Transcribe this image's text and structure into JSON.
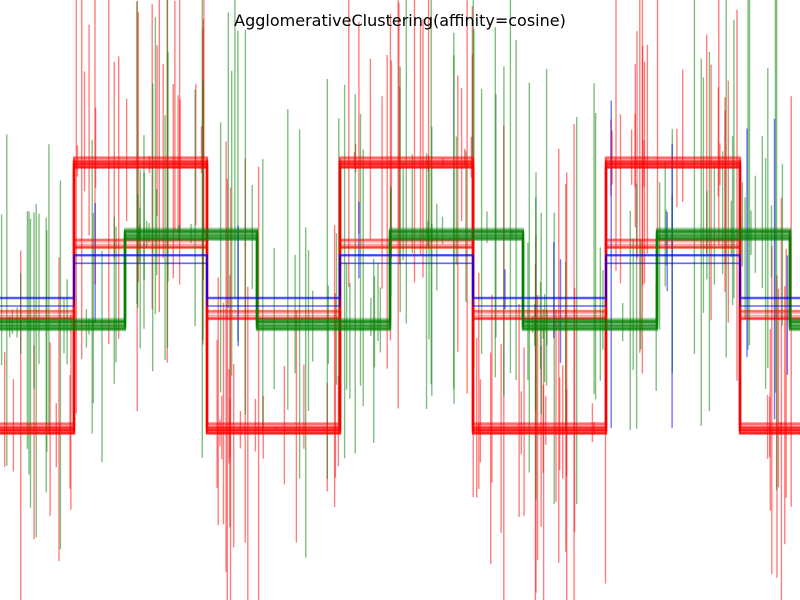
{
  "chart_data": {
    "type": "line",
    "title": "AgglomerativeClustering(affinity=cosine)",
    "xlabel": "",
    "ylabel": "",
    "xlim": [
      0,
      800
    ],
    "ylim": [
      -3,
      3
    ],
    "grid": false,
    "legend": "none",
    "axes_visible": false,
    "x": [
      0,
      74,
      125,
      207,
      257,
      340,
      390,
      473,
      523,
      606,
      657,
      740,
      790,
      800
    ],
    "series": [
      {
        "cluster": 0,
        "color": "#ff0000",
        "levels": [
          -1.2,
          1.6,
          1.6,
          -1.2,
          -1.2,
          1.6,
          1.6,
          -1.2,
          -1.2,
          1.6,
          1.6,
          -1.2,
          -1.2,
          -1.2
        ],
        "alt_levels": [
          0.0,
          0.75,
          0.75,
          0.0,
          0.0,
          0.75,
          0.75,
          0.0,
          0.0,
          0.75,
          0.75,
          0.0,
          0.0,
          0.0
        ],
        "opacity": 0.5
      },
      {
        "cluster": 1,
        "color": "#008000",
        "levels": [
          -0.1,
          -0.1,
          0.85,
          0.85,
          -0.1,
          -0.1,
          0.85,
          0.85,
          -0.1,
          -0.1,
          0.85,
          0.85,
          -0.1,
          -0.1
        ],
        "opacity": 0.5
      },
      {
        "cluster": 2,
        "color": "#0000ff",
        "levels": [
          0.15,
          0.6,
          0.6,
          0.15,
          0.15,
          0.6,
          0.6,
          0.15,
          0.15,
          0.6,
          0.6,
          0.15,
          0.15,
          0.15
        ],
        "opacity": 0.55
      }
    ]
  }
}
